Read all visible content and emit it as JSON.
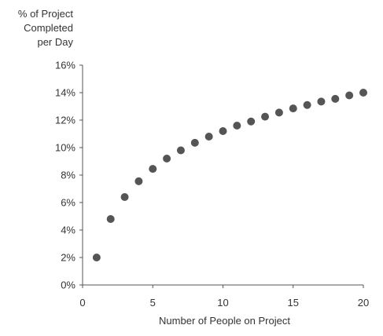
{
  "chart_data": {
    "type": "scatter",
    "title": "",
    "xlabel": "Number of People on Project",
    "ylabel_lines": [
      "% of Project",
      "Completed",
      "per Day"
    ],
    "xlim": [
      0,
      20
    ],
    "ylim": [
      0,
      16
    ],
    "x_ticks": [
      0,
      5,
      10,
      15,
      20
    ],
    "x_tick_labels": [
      "0",
      "5",
      "10",
      "15",
      "20"
    ],
    "y_ticks": [
      0,
      2,
      4,
      6,
      8,
      10,
      12,
      14,
      16
    ],
    "y_tick_labels": [
      "0%",
      "2%",
      "4%",
      "6%",
      "8%",
      "10%",
      "12%",
      "14%",
      "16%"
    ],
    "grid": false,
    "marker_color": "#555555",
    "series": [
      {
        "x": [
          1,
          2,
          3,
          4,
          5,
          6,
          7,
          8,
          9,
          10,
          11,
          12,
          13,
          14,
          15,
          16,
          17,
          18,
          19,
          20
        ],
        "y": [
          2.0,
          4.8,
          6.4,
          7.55,
          8.45,
          9.2,
          9.8,
          10.35,
          10.8,
          11.2,
          11.6,
          11.9,
          12.25,
          12.55,
          12.85,
          13.1,
          13.35,
          13.55,
          13.8,
          14.0
        ]
      }
    ]
  }
}
